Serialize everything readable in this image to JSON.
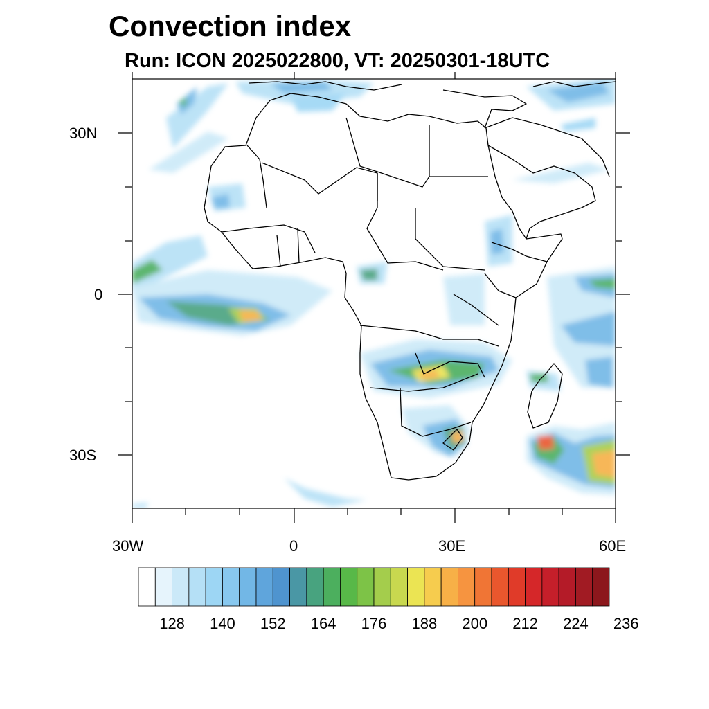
{
  "title": "Convection index",
  "subtitle": "Run: ICON 2025022800,  VT: 20250301-18UTC",
  "map": {
    "x_range_deg": [
      -30,
      60
    ],
    "y_range_deg": [
      -40,
      40
    ],
    "y_ticks": [
      {
        "lat": 30,
        "label": "30N"
      },
      {
        "lat": 0,
        "label": "0"
      },
      {
        "lat": -30,
        "label": "30S"
      }
    ],
    "x_ticks": [
      {
        "lon": -30,
        "label": "30W"
      },
      {
        "lon": 0,
        "label": "0"
      },
      {
        "lon": 30,
        "label": "30E"
      },
      {
        "lon": 60,
        "label": "60E"
      }
    ]
  },
  "colorbar": {
    "labels": [
      "128",
      "140",
      "152",
      "164",
      "176",
      "188",
      "200",
      "212",
      "224",
      "236"
    ],
    "colors": [
      "#ffffff",
      "#e6f4fc",
      "#cbe9f8",
      "#b5e0f6",
      "#9dd6f4",
      "#88c8ef",
      "#72b7e6",
      "#5fa5dc",
      "#4f94cf",
      "#4a97a5",
      "#48a37f",
      "#4caf5e",
      "#58b848",
      "#7dc347",
      "#a4cd4c",
      "#c8d84f",
      "#ebe453",
      "#f6cc4e",
      "#f7b047",
      "#f69440",
      "#f07535",
      "#e9572d",
      "#e03b29",
      "#d52729",
      "#c51f2a",
      "#b41b28",
      "#a11b23",
      "#8c171c"
    ]
  }
}
